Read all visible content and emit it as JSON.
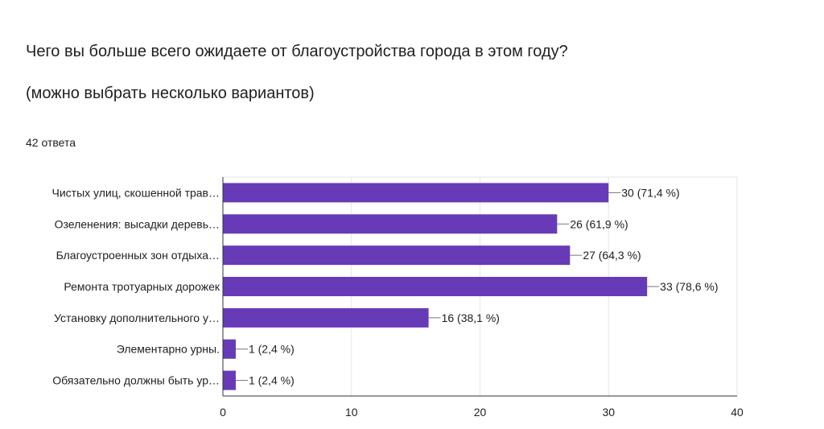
{
  "question": {
    "title": "Чего вы больше всего ожидаете от благоустройства города в этом году?",
    "subtitle": "(можно выбрать несколько вариантов)",
    "responses": "42 ответа"
  },
  "colors": {
    "bar": "#673ab7",
    "grid": "#e6e6e6",
    "axis": "#333333",
    "text": "#202124"
  },
  "chart_data": {
    "type": "bar",
    "orientation": "horizontal",
    "categories": [
      "Чистых улиц, скошенной трав…",
      "Озеленения: высадки деревь…",
      "Благоустроенных зон отдыха…",
      "Ремонта тротуарных дорожек",
      "Установку дополнительного у…",
      "Элементарно урны.",
      "Обязательно должны быть ур…"
    ],
    "values": [
      30,
      26,
      27,
      33,
      16,
      1,
      1
    ],
    "data_labels": [
      "30 (71,4 %)",
      "26 (61,9 %)",
      "27 (64,3 %)",
      "33 (78,6 %)",
      "16 (38,1 %)",
      "1 (2,4 %)",
      "1 (2,4 %)"
    ],
    "xlim": [
      0,
      40
    ],
    "x_ticks": [
      "0",
      "10",
      "20",
      "30",
      "40"
    ],
    "grid": true
  }
}
